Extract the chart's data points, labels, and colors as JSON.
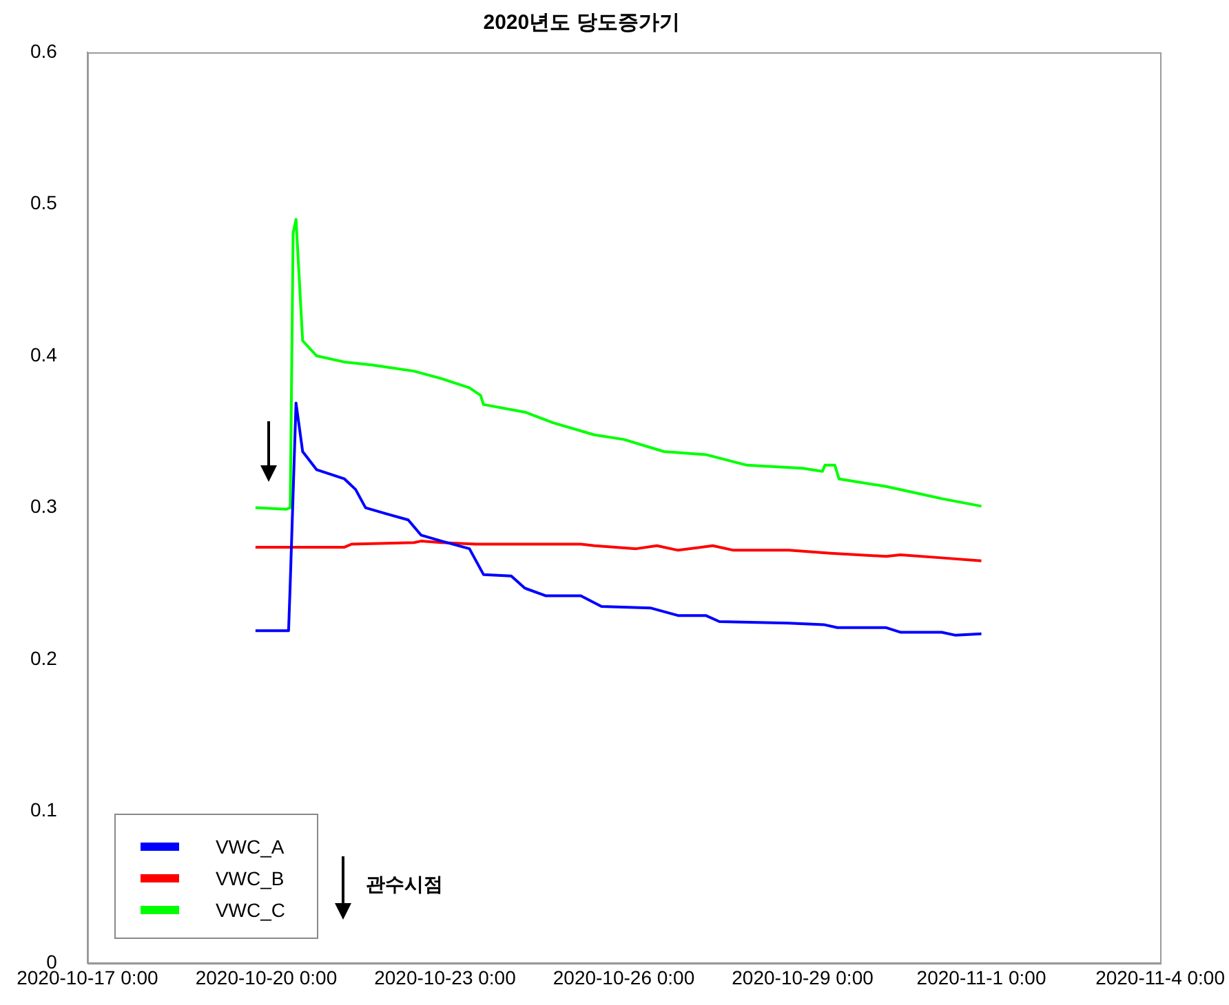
{
  "chart_data": {
    "type": "line",
    "title": "2020년도 당도증가기",
    "xlim": [
      "2020-10-17",
      "2020-11-04"
    ],
    "xticks": [
      {
        "value": "2020-10-17",
        "label": "2020-10-17 0:00"
      },
      {
        "value": "2020-10-20",
        "label": "2020-10-20 0:00"
      },
      {
        "value": "2020-10-23",
        "label": "2020-10-23 0:00"
      },
      {
        "value": "2020-10-26",
        "label": "2020-10-26 0:00"
      },
      {
        "value": "2020-10-29",
        "label": "2020-10-29 0:00"
      },
      {
        "value": "2020-11-01",
        "label": "2020-11-1 0:00"
      },
      {
        "value": "2020-11-04",
        "label": "2020-11-4 0:00"
      }
    ],
    "ylim": [
      0,
      0.6
    ],
    "yticks": [
      0,
      0.1,
      0.2,
      0.3,
      0.4,
      0.5,
      0.6
    ],
    "grid": false,
    "legend": "bottom left",
    "marker": "none",
    "line_style": "solid",
    "annotations": [
      "관수시점"
    ],
    "series": [
      {
        "name": "VWC_A",
        "color": "#0000ff",
        "x": [
          "2020-10-19T19:40",
          "2020-10-20T09:00",
          "2020-10-20T09:40",
          "2020-10-20T12:00",
          "2020-10-20T14:40",
          "2020-10-20T20:20",
          "2020-10-21T07:30",
          "2020-10-21T12:00",
          "2020-10-21T16:00",
          "2020-10-22T00:20",
          "2020-10-22T09:10",
          "2020-10-22T14:20",
          "2020-10-22T22:40",
          "2020-10-23T09:50",
          "2020-10-23T15:30",
          "2020-10-24T02:40",
          "2020-10-24T08:10",
          "2020-10-24T16:40",
          "2020-10-25T06:40",
          "2020-10-25T15:00",
          "2020-10-26T10:40",
          "2020-10-26T21:50",
          "2020-10-27T09:00",
          "2020-10-27T14:30",
          "2020-10-28T18:30",
          "2020-10-29T08:30",
          "2020-10-29T14:00",
          "2020-10-30T09:40",
          "2020-10-30T15:20",
          "2020-10-31T08:00",
          "2020-10-31T13:40",
          "2020-11-01T00:00"
        ],
        "values": [
          0.219,
          0.219,
          0.25,
          0.369,
          0.337,
          0.325,
          0.319,
          0.312,
          0.3,
          0.296,
          0.292,
          0.282,
          0.278,
          0.273,
          0.256,
          0.255,
          0.247,
          0.242,
          0.242,
          0.235,
          0.234,
          0.229,
          0.229,
          0.225,
          0.224,
          0.223,
          0.221,
          0.221,
          0.218,
          0.218,
          0.216,
          0.217
        ]
      },
      {
        "name": "VWC_B",
        "color": "#ff0000",
        "x": [
          "2020-10-19T19:40",
          "2020-10-21T07:30",
          "2020-10-21T10:20",
          "2020-10-22T11:30",
          "2020-10-22T14:20",
          "2020-10-22T22:40",
          "2020-10-23T12:40",
          "2020-10-24T08:10",
          "2020-10-25T06:40",
          "2020-10-25T12:10",
          "2020-10-26T05:00",
          "2020-10-26T13:20",
          "2020-10-26T21:50",
          "2020-10-27T11:50",
          "2020-10-27T20:10",
          "2020-10-28T18:30",
          "2020-10-29T11:20",
          "2020-10-30T09:40",
          "2020-10-30T15:20",
          "2020-10-31T08:00",
          "2020-11-01T00:00"
        ],
        "values": [
          0.274,
          0.274,
          0.276,
          0.277,
          0.278,
          0.277,
          0.276,
          0.276,
          0.276,
          0.275,
          0.273,
          0.275,
          0.272,
          0.275,
          0.272,
          0.272,
          0.27,
          0.268,
          0.269,
          0.267,
          0.265
        ]
      },
      {
        "name": "VWC_C",
        "color": "#00ff00",
        "x": [
          "2020-10-19T19:40",
          "2020-10-20T08:00",
          "2020-10-20T09:40",
          "2020-10-20T10:50",
          "2020-10-20T12:00",
          "2020-10-20T14:40",
          "2020-10-20T20:20",
          "2020-10-21T07:30",
          "2020-10-21T18:40",
          "2020-10-22T11:30",
          "2020-10-22T22:40",
          "2020-10-23T09:50",
          "2020-10-23T14:20",
          "2020-10-23T15:30",
          "2020-10-24T08:10",
          "2020-10-24T19:30",
          "2020-10-25T12:10",
          "2020-10-26T00:00",
          "2020-10-26T16:10",
          "2020-10-27T09:00",
          "2020-10-28T01:40",
          "2020-10-29T00:00",
          "2020-10-29T08:00",
          "2020-10-29T09:00",
          "2020-10-29T13:00",
          "2020-10-29T14:40",
          "2020-10-30T09:40",
          "2020-10-30T20:50",
          "2020-10-31T08:00",
          "2020-11-01T00:00"
        ],
        "values": [
          0.3,
          0.299,
          0.3,
          0.481,
          0.49,
          0.41,
          0.4,
          0.396,
          0.394,
          0.39,
          0.385,
          0.379,
          0.374,
          0.368,
          0.363,
          0.356,
          0.348,
          0.345,
          0.337,
          0.335,
          0.328,
          0.326,
          0.324,
          0.328,
          0.328,
          0.319,
          0.314,
          0.31,
          0.306,
          0.301
        ]
      }
    ]
  }
}
